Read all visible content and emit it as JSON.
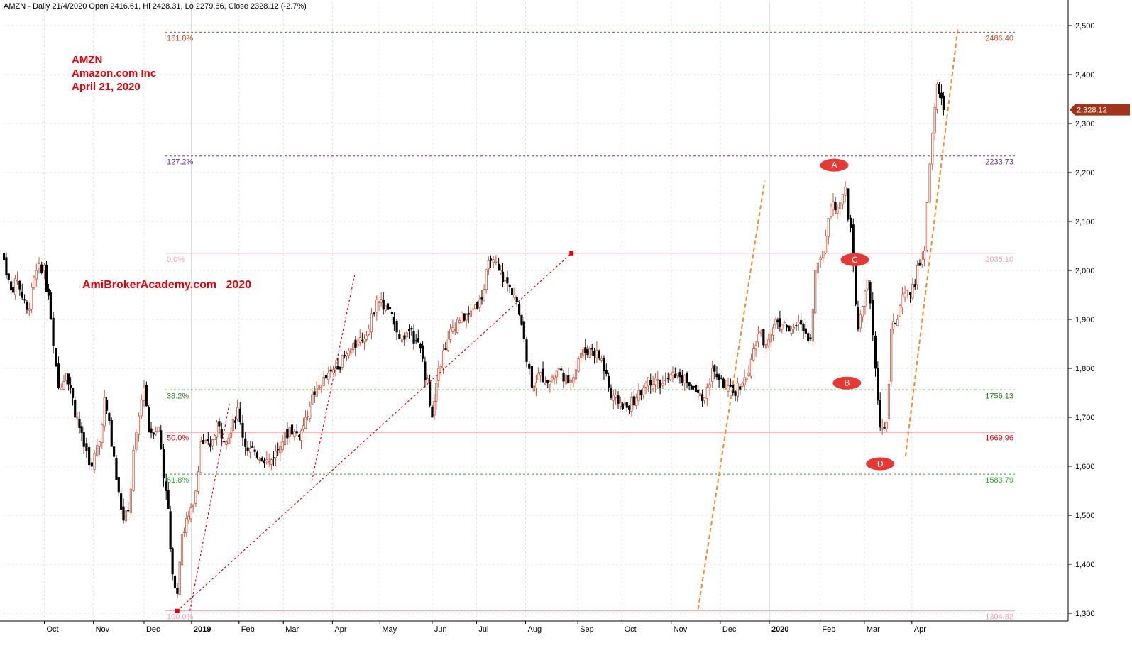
{
  "chart_data": {
    "type": "candlestick",
    "header": "AMZN - Daily 21/4/2020 Open 2416.61, Hi 2428.31, Lo 2279.66, Close 2328.12 (-2.7%)",
    "annotation_lines": [
      "AMZN",
      "Amazon.com Inc",
      "April 21, 2020"
    ],
    "watermark": "AmiBrokerAcademy.com   2020",
    "ylim": [
      1280,
      2520
    ],
    "y_ticks": [
      1300,
      1400,
      1500,
      1600,
      1700,
      1800,
      1900,
      2000,
      2100,
      2200,
      2300,
      2400,
      2500
    ],
    "y_tick_labels": [
      "1,300",
      "1,400",
      "1,500",
      "1,600",
      "1,700",
      "1,800",
      "1,900",
      "2,000",
      "2,100",
      "2,200",
      "2,300",
      "2,400",
      "2,500"
    ],
    "x_range": [
      "2018-09-03",
      "2020-04-28"
    ],
    "x_ticks": [
      {
        "label": "Oct",
        "date": "2018-10-01",
        "bold": false
      },
      {
        "label": "Nov",
        "date": "2018-11-01",
        "bold": false
      },
      {
        "label": "Dec",
        "date": "2018-12-03",
        "bold": false
      },
      {
        "label": "2019",
        "date": "2019-01-02",
        "bold": true
      },
      {
        "label": "Feb",
        "date": "2019-02-01",
        "bold": false
      },
      {
        "label": "Mar",
        "date": "2019-03-01",
        "bold": false
      },
      {
        "label": "Apr",
        "date": "2019-04-01",
        "bold": false
      },
      {
        "label": "May",
        "date": "2019-05-01",
        "bold": false
      },
      {
        "label": "Jun",
        "date": "2019-06-03",
        "bold": false
      },
      {
        "label": "Jul",
        "date": "2019-07-01",
        "bold": false
      },
      {
        "label": "Aug",
        "date": "2019-08-01",
        "bold": false
      },
      {
        "label": "Sep",
        "date": "2019-09-03",
        "bold": false
      },
      {
        "label": "Oct",
        "date": "2019-10-01",
        "bold": false
      },
      {
        "label": "Nov",
        "date": "2019-11-01",
        "bold": false
      },
      {
        "label": "Dec",
        "date": "2019-12-02",
        "bold": false
      },
      {
        "label": "2020",
        "date": "2020-01-02",
        "bold": true
      },
      {
        "label": "Feb",
        "date": "2020-02-03",
        "bold": false
      },
      {
        "label": "Mar",
        "date": "2020-03-02",
        "bold": false
      },
      {
        "label": "Apr",
        "date": "2020-04-01",
        "bold": false
      }
    ],
    "close_series": [
      [
        "2018-09-04",
        2040
      ],
      [
        "2018-09-10",
        1960
      ],
      [
        "2018-09-14",
        1980
      ],
      [
        "2018-09-20",
        1920
      ],
      [
        "2018-09-26",
        2000
      ],
      [
        "2018-10-01",
        2010
      ],
      [
        "2018-10-05",
        1900
      ],
      [
        "2018-10-10",
        1760
      ],
      [
        "2018-10-15",
        1790
      ],
      [
        "2018-10-19",
        1740
      ],
      [
        "2018-10-26",
        1640
      ],
      [
        "2018-10-31",
        1600
      ],
      [
        "2018-11-05",
        1650
      ],
      [
        "2018-11-08",
        1740
      ],
      [
        "2018-11-14",
        1620
      ],
      [
        "2018-11-20",
        1490
      ],
      [
        "2018-11-23",
        1510
      ],
      [
        "2018-11-28",
        1670
      ],
      [
        "2018-12-03",
        1760
      ],
      [
        "2018-12-06",
        1670
      ],
      [
        "2018-12-12",
        1680
      ],
      [
        "2018-12-17",
        1550
      ],
      [
        "2018-12-21",
        1380
      ],
      [
        "2018-12-24",
        1340
      ],
      [
        "2018-12-27",
        1460
      ],
      [
        "2019-01-03",
        1520
      ],
      [
        "2019-01-08",
        1650
      ],
      [
        "2019-01-14",
        1640
      ],
      [
        "2019-01-18",
        1690
      ],
      [
        "2019-01-24",
        1650
      ],
      [
        "2019-01-31",
        1720
      ],
      [
        "2019-02-05",
        1640
      ],
      [
        "2019-02-11",
        1630
      ],
      [
        "2019-02-20",
        1610
      ],
      [
        "2019-02-27",
        1640
      ],
      [
        "2019-03-05",
        1680
      ],
      [
        "2019-03-11",
        1660
      ],
      [
        "2019-03-15",
        1700
      ],
      [
        "2019-03-22",
        1760
      ],
      [
        "2019-03-28",
        1780
      ],
      [
        "2019-04-03",
        1800
      ],
      [
        "2019-04-10",
        1830
      ],
      [
        "2019-04-17",
        1850
      ],
      [
        "2019-04-24",
        1880
      ],
      [
        "2019-04-29",
        1940
      ],
      [
        "2019-05-06",
        1920
      ],
      [
        "2019-05-10",
        1890
      ],
      [
        "2019-05-15",
        1860
      ],
      [
        "2019-05-21",
        1880
      ],
      [
        "2019-05-28",
        1820
      ],
      [
        "2019-06-03",
        1700
      ],
      [
        "2019-06-07",
        1800
      ],
      [
        "2019-06-13",
        1860
      ],
      [
        "2019-06-19",
        1900
      ],
      [
        "2019-06-26",
        1910
      ],
      [
        "2019-07-03",
        1940
      ],
      [
        "2019-07-10",
        2020
      ],
      [
        "2019-07-15",
        2000
      ],
      [
        "2019-07-19",
        1980
      ],
      [
        "2019-07-25",
        1950
      ],
      [
        "2019-07-31",
        1860
      ],
      [
        "2019-08-05",
        1760
      ],
      [
        "2019-08-09",
        1790
      ],
      [
        "2019-08-15",
        1770
      ],
      [
        "2019-08-22",
        1800
      ],
      [
        "2019-08-28",
        1770
      ],
      [
        "2019-09-05",
        1830
      ],
      [
        "2019-09-12",
        1840
      ],
      [
        "2019-09-18",
        1820
      ],
      [
        "2019-09-24",
        1740
      ],
      [
        "2019-09-30",
        1730
      ],
      [
        "2019-10-04",
        1720
      ],
      [
        "2019-10-10",
        1740
      ],
      [
        "2019-10-16",
        1770
      ],
      [
        "2019-10-22",
        1780
      ],
      [
        "2019-10-25",
        1760
      ],
      [
        "2019-10-30",
        1780
      ],
      [
        "2019-11-05",
        1790
      ],
      [
        "2019-11-11",
        1770
      ],
      [
        "2019-11-18",
        1750
      ],
      [
        "2019-11-22",
        1740
      ],
      [
        "2019-11-27",
        1800
      ],
      [
        "2019-12-04",
        1760
      ],
      [
        "2019-12-10",
        1750
      ],
      [
        "2019-12-16",
        1770
      ],
      [
        "2019-12-20",
        1790
      ],
      [
        "2019-12-26",
        1870
      ],
      [
        "2019-12-31",
        1850
      ],
      [
        "2020-01-06",
        1900
      ],
      [
        "2020-01-10",
        1890
      ],
      [
        "2020-01-16",
        1880
      ],
      [
        "2020-01-22",
        1890
      ],
      [
        "2020-01-28",
        1860
      ],
      [
        "2020-01-31",
        2000
      ],
      [
        "2020-02-05",
        2040
      ],
      [
        "2020-02-10",
        2130
      ],
      [
        "2020-02-14",
        2130
      ],
      [
        "2020-02-19",
        2170
      ],
      [
        "2020-02-24",
        2010
      ],
      [
        "2020-02-27",
        1880
      ],
      [
        "2020-03-04",
        1980
      ],
      [
        "2020-03-09",
        1800
      ],
      [
        "2020-03-12",
        1680
      ],
      [
        "2020-03-16",
        1690
      ],
      [
        "2020-03-19",
        1880
      ],
      [
        "2020-03-23",
        1900
      ],
      [
        "2020-03-26",
        1950
      ],
      [
        "2020-03-31",
        1950
      ],
      [
        "2020-04-06",
        2010
      ],
      [
        "2020-04-09",
        2040
      ],
      [
        "2020-04-14",
        2280
      ],
      [
        "2020-04-17",
        2380
      ],
      [
        "2020-04-21",
        2328.12
      ]
    ],
    "last_close_label": "2,328.12",
    "fib_levels": [
      {
        "pct": "161.8%",
        "value": 2486.4,
        "value_label": "2486.40",
        "color": "#c44a2b",
        "dash": true
      },
      {
        "pct": "127.2%",
        "value": 2233.73,
        "value_label": "2233.73",
        "color": "#7030a0",
        "dash": true
      },
      {
        "pct": "0.0%",
        "value": 2035.1,
        "value_label": "2035.10",
        "color": "#f4a6b0",
        "dash": false
      },
      {
        "pct": "38.2%",
        "value": 1756.13,
        "value_label": "1756.13",
        "color": "#2e7d1e",
        "dash": true
      },
      {
        "pct": "50.0%",
        "value": 1669.96,
        "value_label": "1669.96",
        "color": "#e8000b",
        "dash": false
      },
      {
        "pct": "61.8%",
        "value": 1583.79,
        "value_label": "1583.79",
        "color": "#2eaa2e",
        "dash": true
      },
      {
        "pct": "100.0%",
        "value": 1304.82,
        "value_label": "1304.82",
        "color": "#f4a6b0",
        "dash": false
      }
    ],
    "point_labels": [
      {
        "text": "A",
        "date": "2020-02-12",
        "value": 2215
      },
      {
        "text": "C",
        "date": "2020-02-25",
        "value": 2022
      },
      {
        "text": "B",
        "date": "2020-02-20",
        "value": 1770
      },
      {
        "text": "D",
        "date": "2020-03-12",
        "value": 1605
      }
    ],
    "trend_lines": [
      {
        "color": "#e8000b",
        "from": [
          "2018-12-24",
          1304.82
        ],
        "to": [
          "2019-08-30",
          2035.1
        ]
      },
      {
        "color": "#e8000b",
        "from": [
          "2019-01-01",
          1305
        ],
        "to": [
          "2019-01-26",
          1730
        ]
      },
      {
        "color": "#e8000b",
        "from": [
          "2019-03-19",
          1570
        ],
        "to": [
          "2019-04-15",
          1990
        ]
      },
      {
        "color": "#f28c28",
        "from": [
          "2019-11-18",
          1308
        ],
        "to": [
          "2019-12-30",
          2183
        ]
      },
      {
        "color": "#f28c28",
        "from": [
          "2020-03-28",
          1620
        ],
        "to": [
          "2020-04-30",
          2492
        ]
      }
    ]
  },
  "colors": {
    "up": "#c8553d",
    "down": "#000000",
    "grid": "#d9d9d9",
    "label_bg": "#e53935",
    "price_badge": "#a2341c"
  }
}
